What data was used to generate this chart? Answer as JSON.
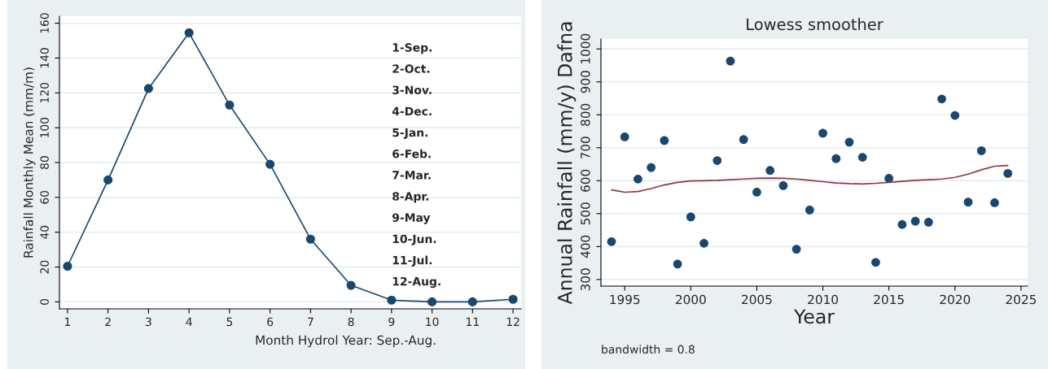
{
  "chart_data": [
    {
      "type": "line",
      "xlabel": "Month Hydrol Year: Sep.-Aug.",
      "ylabel": "Rainfall Monthly Mean (mm/m)",
      "x": [
        1,
        2,
        3,
        4,
        5,
        6,
        7,
        8,
        9,
        10,
        11,
        12
      ],
      "series": [
        {
          "color": "#1a476f",
          "values": [
            20.5,
            70,
            122.5,
            154.5,
            113,
            79,
            36,
            9.5,
            1,
            0,
            0,
            1.5
          ]
        }
      ],
      "marker": "circle",
      "line_style": "solid",
      "xlim": [
        0.8,
        12.2
      ],
      "xticks": [
        1,
        2,
        3,
        4,
        5,
        6,
        7,
        8,
        9,
        10,
        11,
        12
      ],
      "ylim": [
        -4,
        164
      ],
      "yticks": [
        0,
        20,
        40,
        60,
        80,
        100,
        120,
        140,
        160
      ],
      "grid": "y",
      "annotations": [
        "1-Sep.",
        "2-Oct.",
        "3-Nov.",
        "4-Dec.",
        "5-Jan.",
        "6-Feb.",
        "7-Mar.",
        "8-Apr.",
        "9-May",
        "10-Jun.",
        "11-Jul.",
        "12-Aug."
      ]
    },
    {
      "type": "scatter",
      "title": "Lowess smoother",
      "xlabel": "Year",
      "ylabel": "Annual Rainfall (mm/y) Dafna",
      "x": [
        1994,
        1995,
        1996,
        1997,
        1998,
        1999,
        2000,
        2001,
        2002,
        2003,
        2004,
        2005,
        2006,
        2007,
        2008,
        2009,
        2010,
        2011,
        2012,
        2013,
        2014,
        2015,
        2016,
        2017,
        2018,
        2019,
        2020,
        2021,
        2022,
        2023,
        2024
      ],
      "series": [
        {
          "type": "scatter",
          "color": "#1a476f",
          "marker": "circle",
          "values": [
            415,
            733,
            605,
            640,
            722,
            347,
            490,
            410,
            661,
            963,
            725,
            565,
            631,
            585,
            392,
            511,
            744,
            667,
            717,
            671,
            352,
            607,
            467,
            477,
            474,
            848,
            798,
            535,
            691,
            533,
            622
          ]
        },
        {
          "type": "line",
          "color": "#90353b",
          "values": [
            572,
            565,
            567,
            576,
            587,
            595,
            599,
            600,
            601,
            603,
            605,
            607,
            608,
            607,
            605,
            601,
            597,
            593,
            591,
            590,
            592,
            595,
            598,
            601,
            603,
            605,
            610,
            620,
            633,
            644,
            646
          ]
        }
      ],
      "xlim": [
        1993.2,
        2025.5
      ],
      "xticks": [
        1995,
        2000,
        2005,
        2010,
        2015,
        2020,
        2025
      ],
      "ylim": [
        280,
        1030
      ],
      "yticks": [
        300,
        400,
        500,
        600,
        700,
        800,
        900,
        1000
      ],
      "grid": "y",
      "annotations": [
        "bandwidth = 0.8"
      ]
    }
  ]
}
